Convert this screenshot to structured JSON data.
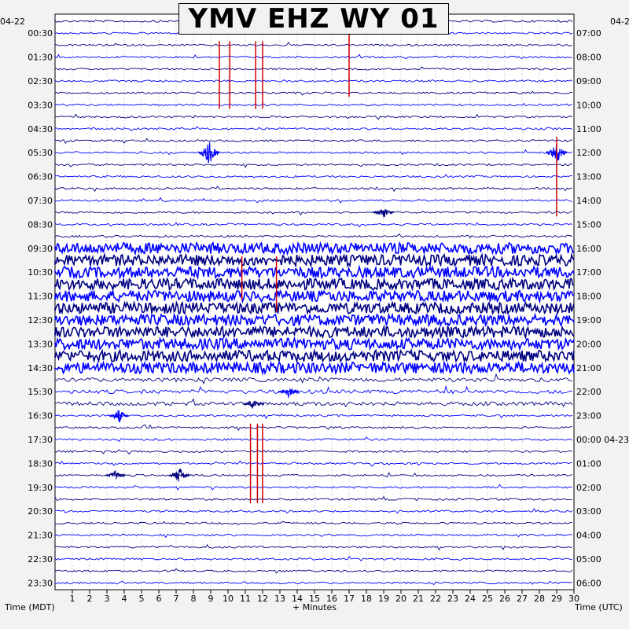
{
  "chart_data": {
    "type": "seismogram",
    "title": "YMV EHZ WY 01",
    "date_left": "04-22",
    "date_right_top": "04-2",
    "date_right_rollover": "04-23",
    "xlabel": "+ Minutes",
    "left_axis_title": "Time (MDT)",
    "right_axis_title": "Time (UTC)",
    "x_range": [
      0,
      30
    ],
    "x_ticks": [
      1,
      2,
      3,
      4,
      5,
      6,
      7,
      8,
      9,
      10,
      11,
      12,
      13,
      14,
      15,
      16,
      17,
      18,
      19,
      20,
      21,
      22,
      23,
      24,
      25,
      26,
      27,
      28,
      29,
      30
    ],
    "left_time_labels": [
      "00:30",
      "01:30",
      "02:30",
      "03:30",
      "04:30",
      "05:30",
      "06:30",
      "07:30",
      "08:30",
      "09:30",
      "10:30",
      "11:30",
      "12:30",
      "13:30",
      "14:30",
      "15:30",
      "16:30",
      "17:30",
      "18:30",
      "19:30",
      "20:30",
      "21:30",
      "22:30",
      "23:30"
    ],
    "right_time_labels": [
      "07:00",
      "08:00",
      "09:00",
      "10:00",
      "11:00",
      "12:00",
      "13:00",
      "14:00",
      "15:00",
      "16:00",
      "17:00",
      "18:00",
      "19:00",
      "20:00",
      "21:00",
      "22:00",
      "23:00",
      "00:00",
      "01:00",
      "02:00",
      "03:00",
      "04:00",
      "05:00",
      "06:00"
    ],
    "rows_per_hour": 2,
    "trace_colors": [
      "#000080",
      "#0000ff"
    ],
    "pick_color": "#cc0000",
    "grid": "dotted-vertical"
  }
}
